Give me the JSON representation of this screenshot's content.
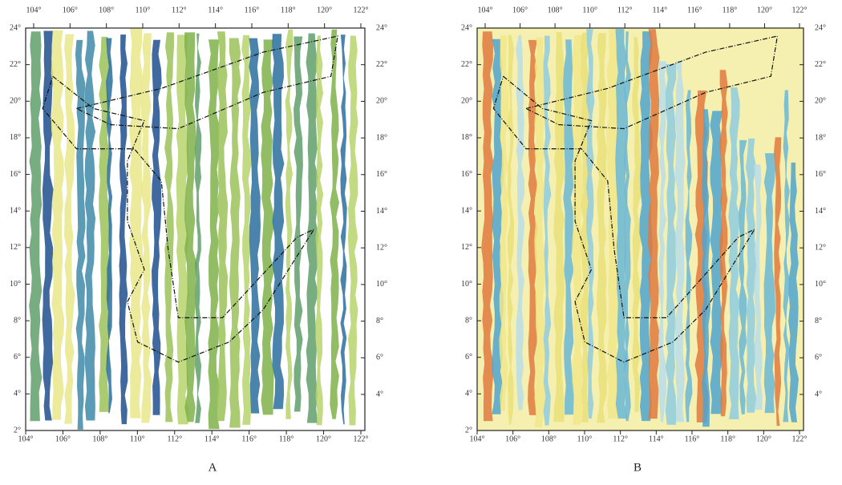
{
  "panels": [
    {
      "caption": "A",
      "top_labels": [
        "104°",
        "106°",
        "108°",
        "110°",
        "112°",
        "114°",
        "116°",
        "118°",
        "120°",
        "122°"
      ],
      "bottom_labels": [
        "104°",
        "106°",
        "108°",
        "110°",
        "112°",
        "114°",
        "116°",
        "118°",
        "120°",
        "122°"
      ],
      "left_labels": [
        "24°",
        "22°",
        "20°",
        "18°",
        "16°",
        "14°",
        "12°",
        "10°",
        "8°",
        "6°",
        "4°",
        "2°"
      ],
      "right_labels": [
        "24°",
        "22°",
        "20°",
        "18°",
        "16°",
        "14°",
        "12°",
        "10°",
        "8°",
        "6°",
        "4°"
      ]
    },
    {
      "caption": "B",
      "top_labels": [
        "104°",
        "106°",
        "108°",
        "110°",
        "112°",
        "114°",
        "116°",
        "118°",
        "120°",
        "122°"
      ],
      "bottom_labels": [
        "104°",
        "106°",
        "108°",
        "110°",
        "112°",
        "114°",
        "116°",
        "118°",
        "120°",
        "122°"
      ],
      "left_labels": [
        "24°",
        "22°",
        "20°",
        "18°",
        "16°",
        "14°",
        "12°",
        "10°",
        "8°",
        "6°",
        "4°",
        "2°"
      ],
      "right_labels": [
        "24°",
        "22°",
        "20°",
        "18°",
        "16°",
        "14°",
        "12°",
        "10°",
        "8°",
        "6°",
        "4°"
      ]
    }
  ]
}
